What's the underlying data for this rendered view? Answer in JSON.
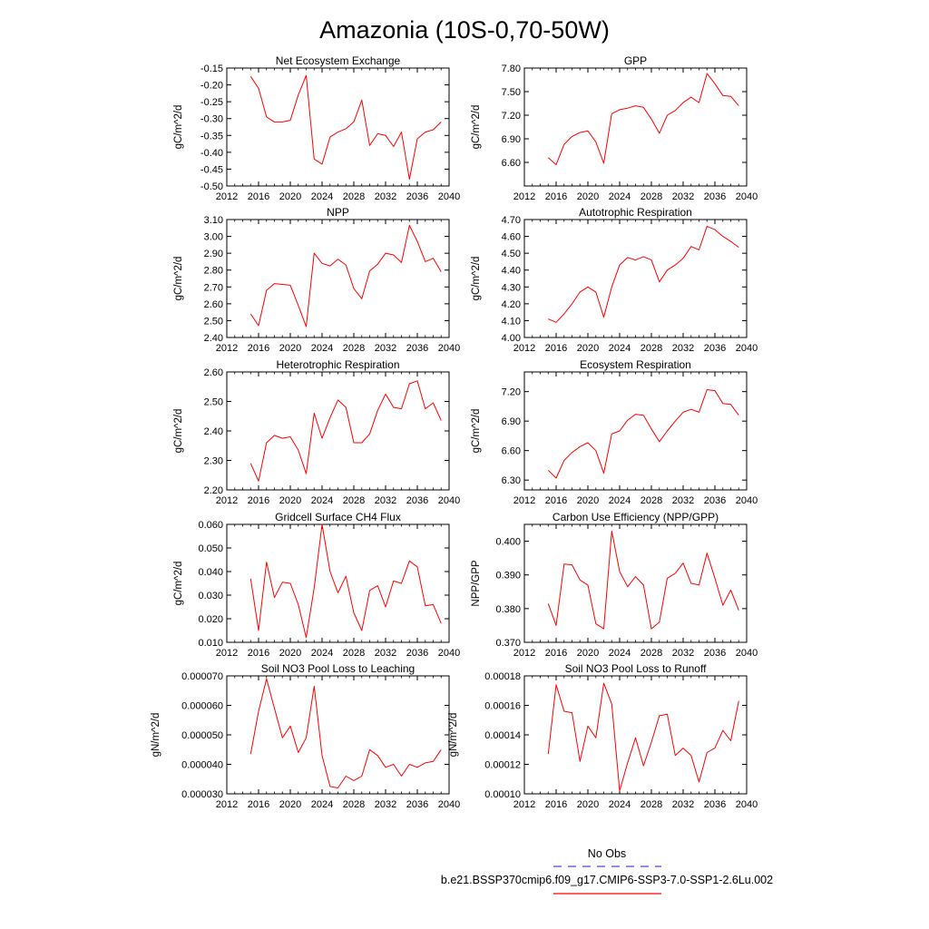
{
  "figure": {
    "title": "Amazonia (10S-0,70-50W)"
  },
  "colors": {
    "series": "#ff0000",
    "obs": "#4848d8",
    "axis": "#000000"
  },
  "legend": {
    "placement": "bottom-right",
    "entries": [
      {
        "label": "No Obs",
        "style": "dashed",
        "color": "#4848d8"
      },
      {
        "label": "b.e21.BSSP370cmip6.f09_g17.CMIP6-SSP3-7.0-SSP1-2.6Lu.002",
        "style": "solid",
        "color": "#ff0000"
      }
    ]
  },
  "chart_data": [
    {
      "type": "line",
      "title": "Net Ecosystem Exchange",
      "ylabel": "gC/m^2/d",
      "xlabel": "",
      "xlim": [
        2012,
        2040
      ],
      "ylim": [
        -0.5,
        -0.15
      ],
      "xticks": [
        "2012",
        "2016",
        "2020",
        "2024",
        "2028",
        "2032",
        "2036",
        "2040"
      ],
      "yticks": [
        "-0.15",
        "-0.20",
        "-0.25",
        "-0.30",
        "-0.35",
        "-0.40",
        "-0.45",
        "-0.50"
      ],
      "x": [
        2015,
        2016,
        2017,
        2018,
        2019,
        2020,
        2021,
        2022,
        2023,
        2024,
        2025,
        2026,
        2027,
        2028,
        2029,
        2030,
        2031,
        2032,
        2033,
        2034,
        2035,
        2036,
        2037,
        2038,
        2039
      ],
      "series": [
        {
          "values": [
            -0.175,
            -0.21,
            -0.295,
            -0.31,
            -0.31,
            -0.305,
            -0.23,
            -0.172,
            -0.42,
            -0.435,
            -0.355,
            -0.34,
            -0.33,
            -0.31,
            -0.245,
            -0.38,
            -0.345,
            -0.35,
            -0.383,
            -0.34,
            -0.48,
            -0.36,
            -0.34,
            -0.333,
            -0.31
          ]
        }
      ]
    },
    {
      "type": "line",
      "title": "GPP",
      "ylabel": "gC/m^2/d",
      "xlabel": "",
      "xlim": [
        2012,
        2040
      ],
      "ylim": [
        6.3,
        7.8
      ],
      "xticks": [
        "2012",
        "2016",
        "2020",
        "2024",
        "2028",
        "2032",
        "2036",
        "2040"
      ],
      "yticks": [
        "7.80",
        "7.50",
        "7.20",
        "6.90",
        "6.60"
      ],
      "x": [
        2015,
        2016,
        2017,
        2018,
        2019,
        2020,
        2021,
        2022,
        2023,
        2024,
        2025,
        2026,
        2027,
        2028,
        2029,
        2030,
        2031,
        2032,
        2033,
        2034,
        2035,
        2036,
        2037,
        2038,
        2039
      ],
      "series": [
        {
          "values": [
            6.66,
            6.57,
            6.83,
            6.93,
            6.98,
            7.0,
            6.86,
            6.59,
            7.22,
            7.27,
            7.29,
            7.32,
            7.3,
            7.15,
            6.97,
            7.2,
            7.26,
            7.36,
            7.43,
            7.36,
            7.73,
            7.6,
            7.45,
            7.44,
            7.32
          ]
        }
      ]
    },
    {
      "type": "line",
      "title": "NPP",
      "ylabel": "gC/m^2/d",
      "xlabel": "",
      "xlim": [
        2012,
        2040
      ],
      "ylim": [
        2.4,
        3.1
      ],
      "xticks": [
        "2012",
        "2016",
        "2020",
        "2024",
        "2028",
        "2032",
        "2036",
        "2040"
      ],
      "yticks": [
        "3.10",
        "3.00",
        "2.90",
        "2.80",
        "2.70",
        "2.60",
        "2.50",
        "2.40"
      ],
      "x": [
        2015,
        2016,
        2017,
        2018,
        2019,
        2020,
        2021,
        2022,
        2023,
        2024,
        2025,
        2026,
        2027,
        2028,
        2029,
        2030,
        2031,
        2032,
        2033,
        2034,
        2035,
        2036,
        2037,
        2038,
        2039
      ],
      "series": [
        {
          "values": [
            2.54,
            2.47,
            2.68,
            2.72,
            2.715,
            2.71,
            2.59,
            2.465,
            2.9,
            2.84,
            2.825,
            2.865,
            2.83,
            2.69,
            2.63,
            2.795,
            2.835,
            2.9,
            2.89,
            2.845,
            3.065,
            2.97,
            2.85,
            2.87,
            2.79
          ]
        }
      ]
    },
    {
      "type": "line",
      "title": "Autotrophic Respiration",
      "ylabel": "gC/m^2/d",
      "xlabel": "",
      "xlim": [
        2012,
        2040
      ],
      "ylim": [
        4.0,
        4.7
      ],
      "xticks": [
        "2012",
        "2016",
        "2020",
        "2024",
        "2028",
        "2032",
        "2036",
        "2040"
      ],
      "yticks": [
        "4.70",
        "4.60",
        "4.50",
        "4.40",
        "4.30",
        "4.20",
        "4.10",
        "4.00"
      ],
      "x": [
        2015,
        2016,
        2017,
        2018,
        2019,
        2020,
        2021,
        2022,
        2023,
        2024,
        2025,
        2026,
        2027,
        2028,
        2029,
        2030,
        2031,
        2032,
        2033,
        2034,
        2035,
        2036,
        2037,
        2038,
        2039
      ],
      "series": [
        {
          "values": [
            4.11,
            4.09,
            4.14,
            4.2,
            4.27,
            4.3,
            4.27,
            4.12,
            4.3,
            4.43,
            4.475,
            4.46,
            4.48,
            4.46,
            4.33,
            4.4,
            4.43,
            4.47,
            4.54,
            4.52,
            4.66,
            4.64,
            4.6,
            4.57,
            4.535
          ]
        }
      ]
    },
    {
      "type": "line",
      "title": "Heterotrophic Respiration",
      "ylabel": "gC/m^2/d",
      "xlabel": "",
      "xlim": [
        2012,
        2040
      ],
      "ylim": [
        2.2,
        2.6
      ],
      "xticks": [
        "2012",
        "2016",
        "2020",
        "2024",
        "2028",
        "2032",
        "2036",
        "2040"
      ],
      "yticks": [
        "2.60",
        "2.50",
        "2.40",
        "2.30",
        "2.20"
      ],
      "x": [
        2015,
        2016,
        2017,
        2018,
        2019,
        2020,
        2021,
        2022,
        2023,
        2024,
        2025,
        2026,
        2027,
        2028,
        2029,
        2030,
        2031,
        2032,
        2033,
        2034,
        2035,
        2036,
        2037,
        2038,
        2039
      ],
      "series": [
        {
          "values": [
            2.29,
            2.23,
            2.36,
            2.385,
            2.375,
            2.38,
            2.335,
            2.255,
            2.46,
            2.375,
            2.445,
            2.505,
            2.48,
            2.36,
            2.36,
            2.39,
            2.47,
            2.525,
            2.48,
            2.475,
            2.56,
            2.57,
            2.475,
            2.495,
            2.435
          ]
        }
      ]
    },
    {
      "type": "line",
      "title": "Ecosystem Respiration",
      "ylabel": "gC/m^2/d",
      "xlabel": "",
      "xlim": [
        2012,
        2040
      ],
      "ylim": [
        6.2,
        7.4
      ],
      "xticks": [
        "2012",
        "2016",
        "2020",
        "2024",
        "2028",
        "2032",
        "2036",
        "2040"
      ],
      "yticks": [
        "7.20",
        "6.90",
        "6.60",
        "6.30"
      ],
      "x": [
        2015,
        2016,
        2017,
        2018,
        2019,
        2020,
        2021,
        2022,
        2023,
        2024,
        2025,
        2026,
        2027,
        2028,
        2029,
        2030,
        2031,
        2032,
        2033,
        2034,
        2035,
        2036,
        2037,
        2038,
        2039
      ],
      "series": [
        {
          "values": [
            6.4,
            6.32,
            6.5,
            6.58,
            6.64,
            6.68,
            6.6,
            6.37,
            6.77,
            6.8,
            6.91,
            6.97,
            6.96,
            6.82,
            6.69,
            6.8,
            6.9,
            6.99,
            7.02,
            6.99,
            7.22,
            7.21,
            7.08,
            7.07,
            6.96
          ]
        }
      ]
    },
    {
      "type": "line",
      "title": "Gridcell Surface CH4 Flux",
      "ylabel": "gC/m^2/d",
      "xlabel": "",
      "xlim": [
        2012,
        2040
      ],
      "ylim": [
        0.01,
        0.06
      ],
      "xticks": [
        "2012",
        "2016",
        "2020",
        "2024",
        "2028",
        "2032",
        "2036",
        "2040"
      ],
      "yticks": [
        "0.060",
        "0.050",
        "0.040",
        "0.030",
        "0.020",
        "0.010"
      ],
      "x": [
        2015,
        2016,
        2017,
        2018,
        2019,
        2020,
        2021,
        2022,
        2023,
        2024,
        2025,
        2026,
        2027,
        2028,
        2029,
        2030,
        2031,
        2032,
        2033,
        2034,
        2035,
        2036,
        2037,
        2038,
        2039
      ],
      "series": [
        {
          "values": [
            0.037,
            0.015,
            0.044,
            0.029,
            0.0355,
            0.035,
            0.026,
            0.012,
            0.033,
            0.06,
            0.04,
            0.031,
            0.038,
            0.0225,
            0.015,
            0.032,
            0.034,
            0.025,
            0.036,
            0.035,
            0.0445,
            0.042,
            0.0255,
            0.026,
            0.018
          ]
        }
      ]
    },
    {
      "type": "line",
      "title": "Carbon Use Efficiency (NPP/GPP)",
      "ylabel": "NPP/GPP",
      "xlabel": "",
      "xlim": [
        2012,
        2040
      ],
      "ylim": [
        0.37,
        0.405
      ],
      "xticks": [
        "2012",
        "2016",
        "2020",
        "2024",
        "2028",
        "2032",
        "2036",
        "2040"
      ],
      "yticks": [
        "0.400",
        "0.390",
        "0.380",
        "0.370"
      ],
      "x": [
        2015,
        2016,
        2017,
        2018,
        2019,
        2020,
        2021,
        2022,
        2023,
        2024,
        2025,
        2026,
        2027,
        2028,
        2029,
        2030,
        2031,
        2032,
        2033,
        2034,
        2035,
        2036,
        2037,
        2038,
        2039
      ],
      "series": [
        {
          "values": [
            0.3815,
            0.375,
            0.3932,
            0.393,
            0.3885,
            0.387,
            0.3755,
            0.374,
            0.403,
            0.391,
            0.3865,
            0.3895,
            0.387,
            0.374,
            0.376,
            0.389,
            0.3905,
            0.3935,
            0.3875,
            0.387,
            0.3965,
            0.389,
            0.381,
            0.3855,
            0.3795
          ]
        }
      ]
    },
    {
      "type": "line",
      "title": "Soil NO3 Pool Loss to Leaching",
      "ylabel": "gN/m^2/d",
      "xlabel": "",
      "xlim": [
        2012,
        2040
      ],
      "ylim": [
        3e-05,
        7e-05
      ],
      "xticks": [
        "2012",
        "2016",
        "2020",
        "2024",
        "2028",
        "2032",
        "2036",
        "2040"
      ],
      "yticks": [
        "0.000070",
        "0.000060",
        "0.000050",
        "0.000040",
        "0.000030"
      ],
      "x": [
        2015,
        2016,
        2017,
        2018,
        2019,
        2020,
        2021,
        2022,
        2023,
        2024,
        2025,
        2026,
        2027,
        2028,
        2029,
        2030,
        2031,
        2032,
        2033,
        2034,
        2035,
        2036,
        2037,
        2038,
        2039
      ],
      "series": [
        {
          "values": [
            4.35e-05,
            5.8e-05,
            6.9e-05,
            5.9e-05,
            4.9e-05,
            5.3e-05,
            4.4e-05,
            4.9e-05,
            6.65e-05,
            4.3e-05,
            3.25e-05,
            3.2e-05,
            3.6e-05,
            3.45e-05,
            3.6e-05,
            4.5e-05,
            4.3e-05,
            3.9e-05,
            4e-05,
            3.6e-05,
            4e-05,
            3.9e-05,
            4.05e-05,
            4.1e-05,
            4.5e-05
          ]
        }
      ]
    },
    {
      "type": "line",
      "title": "Soil NO3 Pool Loss to Runoff",
      "ylabel": "gN/m^2/d",
      "xlabel": "",
      "xlim": [
        2012,
        2040
      ],
      "ylim": [
        0.0001,
        0.00018
      ],
      "xticks": [
        "2012",
        "2016",
        "2020",
        "2024",
        "2028",
        "2032",
        "2036",
        "2040"
      ],
      "yticks": [
        "0.00018",
        "0.00016",
        "0.00014",
        "0.00012",
        "0.00010"
      ],
      "x": [
        2015,
        2016,
        2017,
        2018,
        2019,
        2020,
        2021,
        2022,
        2023,
        2024,
        2025,
        2026,
        2027,
        2028,
        2029,
        2030,
        2031,
        2032,
        2033,
        2034,
        2035,
        2036,
        2037,
        2038,
        2039
      ],
      "series": [
        {
          "values": [
            0.000127,
            0.000174,
            0.000156,
            0.000155,
            0.000122,
            0.000146,
            0.000138,
            0.000175,
            0.000161,
            0.000102,
            0.000121,
            0.000138,
            0.000119,
            0.000135,
            0.000153,
            0.000154,
            0.000126,
            0.000131,
            0.000126,
            0.000108,
            0.000128,
            0.000131,
            0.000143,
            0.000136,
            0.000163
          ]
        }
      ]
    }
  ]
}
